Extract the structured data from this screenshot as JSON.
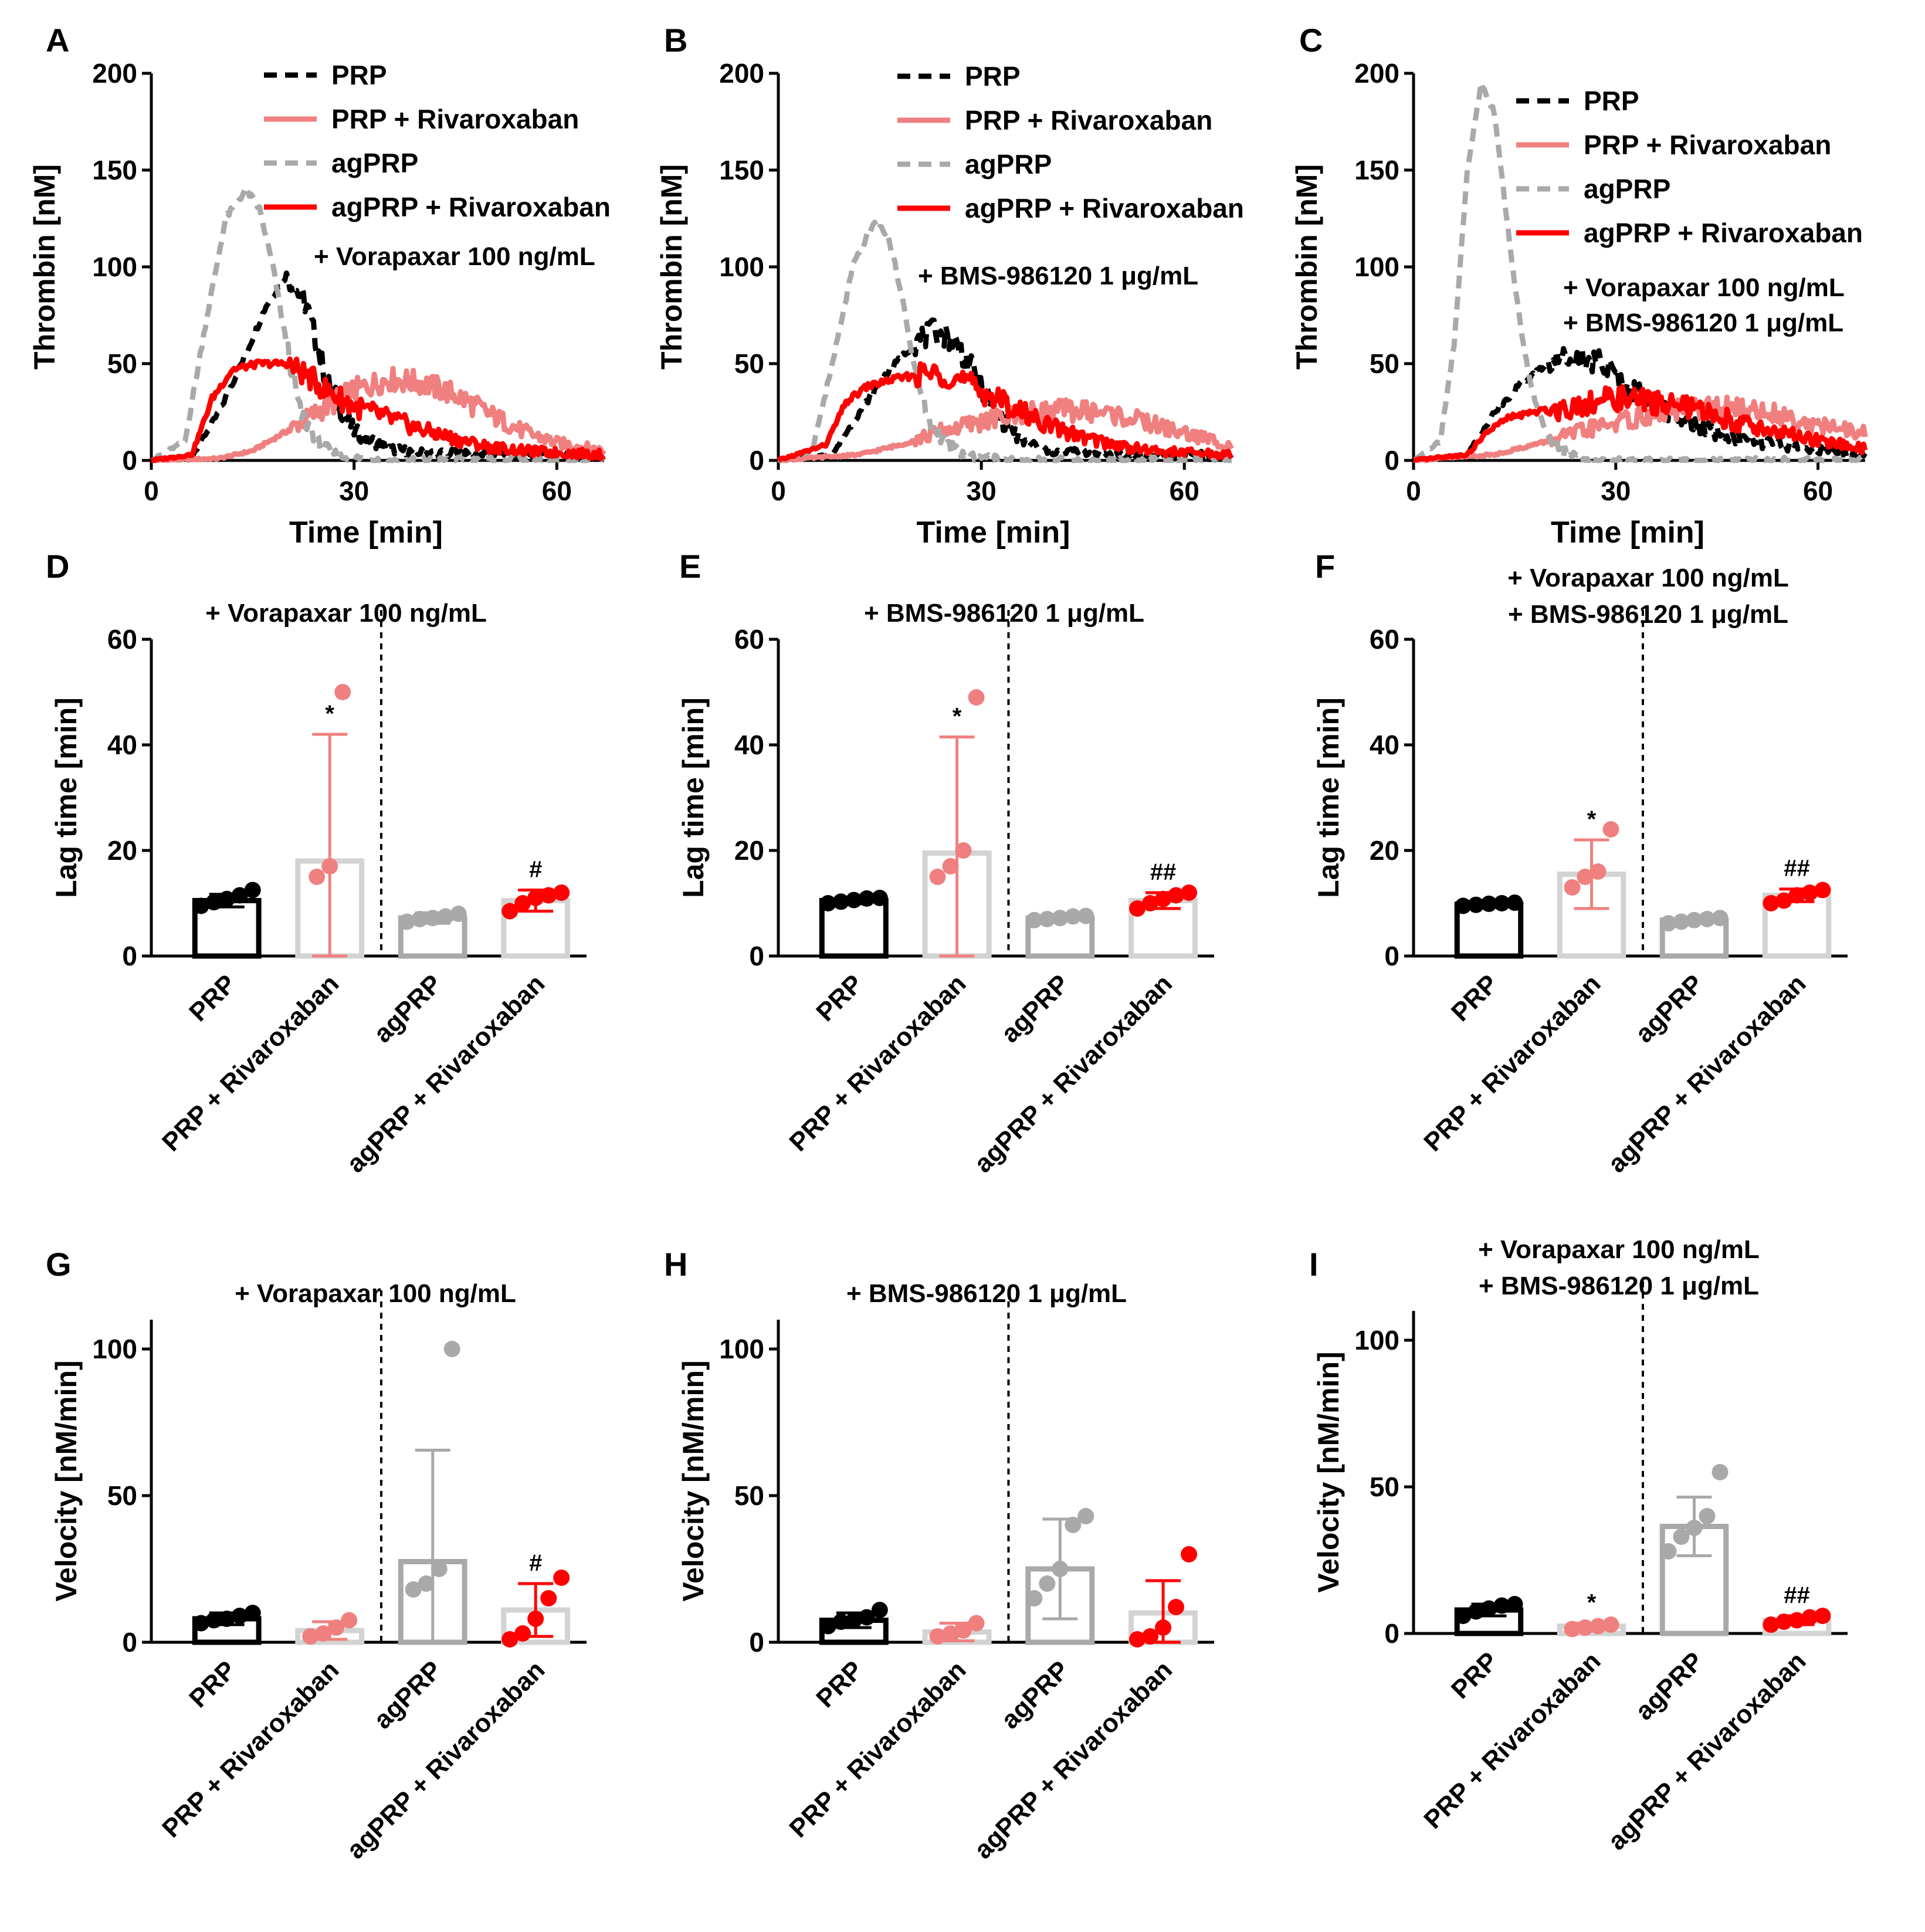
{
  "colors": {
    "PRP": "#000000",
    "PRP + Rivaroxaban": "#f08080",
    "agPRP": "#a9a9a9",
    "agPRP + Rivaroxaban": "#ff0000",
    "barPRP": "#000000",
    "barPRPRiv": "#d3d3d3",
    "barAg": "#a9a9a9",
    "barAgRiv": "#d3d3d3"
  },
  "chart_data": [
    {
      "panel": "A",
      "type": "line",
      "xlabel": "Time [min]",
      "ylabel": "Thrombin [nM]",
      "xlim": [
        0,
        67
      ],
      "ylim": [
        0,
        200
      ],
      "xticks": [
        "0",
        "30",
        "60"
      ],
      "yticks": [
        "0",
        "50",
        "100",
        "150",
        "200"
      ],
      "annotations": [
        "+ Vorapaxar 100 ng/mL"
      ],
      "legend": [
        "PRP",
        "PRP + Rivaroxaban",
        "agPRP",
        "agPRP + Rivaroxaban"
      ],
      "series": [
        {
          "name": "PRP",
          "style": "dashed",
          "x": [
            0,
            6,
            10,
            14,
            17,
            20,
            23,
            26,
            30,
            35,
            40,
            50,
            60,
            67
          ],
          "y": [
            0,
            2,
            25,
            55,
            80,
            96,
            80,
            40,
            15,
            6,
            4,
            3,
            3,
            2
          ]
        },
        {
          "name": "PRP + Rivaroxaban",
          "style": "solid",
          "x": [
            0,
            10,
            15,
            20,
            25,
            30,
            35,
            40,
            45,
            50,
            55,
            60,
            67
          ],
          "y": [
            0,
            1,
            5,
            15,
            26,
            36,
            42,
            40,
            34,
            24,
            15,
            9,
            5
          ]
        },
        {
          "name": "agPRP",
          "style": "dashed",
          "x": [
            0,
            5,
            8,
            11,
            14,
            16,
            18,
            20,
            22,
            25,
            28,
            35,
            67
          ],
          "y": [
            0,
            10,
            70,
            125,
            140,
            130,
            100,
            60,
            25,
            8,
            2,
            0,
            0
          ]
        },
        {
          "name": "agPRP + Rivaroxaban",
          "style": "solid",
          "x": [
            0,
            6,
            9,
            12,
            16,
            20,
            23,
            26,
            30,
            35,
            40,
            45,
            50,
            55,
            60,
            67
          ],
          "y": [
            0,
            3,
            32,
            47,
            50,
            50,
            44,
            36,
            28,
            22,
            16,
            11,
            7,
            5,
            4,
            3
          ]
        }
      ]
    },
    {
      "panel": "B",
      "type": "line",
      "xlabel": "Time [min]",
      "ylabel": "Thrombin [nM]",
      "xlim": [
        0,
        67
      ],
      "ylim": [
        0,
        200
      ],
      "xticks": [
        "0",
        "30",
        "60"
      ],
      "yticks": [
        "0",
        "50",
        "100",
        "150",
        "200"
      ],
      "annotations": [
        "+ BMS-986120 1 μg/mL"
      ],
      "legend": [
        "PRP",
        "PRP + Rivaroxaban",
        "agPRP",
        "agPRP + Rivaroxaban"
      ],
      "series": [
        {
          "name": "PRP",
          "style": "dashed",
          "x": [
            0,
            8,
            12,
            16,
            20,
            23,
            26,
            29,
            32,
            36,
            40,
            50,
            60,
            67
          ],
          "y": [
            0,
            3,
            25,
            45,
            60,
            67,
            62,
            45,
            25,
            10,
            5,
            3,
            3,
            2
          ]
        },
        {
          "name": "PRP + Rivaroxaban",
          "style": "solid",
          "x": [
            0,
            12,
            18,
            24,
            30,
            36,
            42,
            48,
            54,
            60,
            67
          ],
          "y": [
            0,
            3,
            8,
            15,
            20,
            24,
            26,
            25,
            20,
            14,
            8
          ]
        },
        {
          "name": "agPRP",
          "style": "dashed",
          "x": [
            0,
            5,
            8,
            11,
            14,
            16,
            18,
            20,
            22,
            25,
            28,
            35,
            67
          ],
          "y": [
            0,
            5,
            50,
            100,
            122,
            118,
            90,
            50,
            22,
            8,
            2,
            0,
            0
          ]
        },
        {
          "name": "agPRP + Rivaroxaban",
          "style": "solid",
          "x": [
            0,
            7,
            10,
            13,
            17,
            22,
            25,
            28,
            32,
            36,
            40,
            45,
            50,
            55,
            60,
            67
          ],
          "y": [
            0,
            8,
            30,
            38,
            42,
            45,
            44,
            40,
            32,
            25,
            18,
            12,
            8,
            5,
            4,
            3
          ]
        }
      ]
    },
    {
      "panel": "C",
      "type": "line",
      "xlabel": "Time [min]",
      "ylabel": "Thrombin [nM]",
      "xlim": [
        0,
        67
      ],
      "ylim": [
        0,
        200
      ],
      "xticks": [
        "0",
        "30",
        "60"
      ],
      "yticks": [
        "0",
        "50",
        "100",
        "150",
        "200"
      ],
      "annotations": [
        "+ Vorapaxar 100 ng/mL",
        "+ BMS-986120 1 μg/mL"
      ],
      "legend": [
        "PRP",
        "PRP + Rivaroxaban",
        "agPRP",
        "agPRP + Rivaroxaban"
      ],
      "series": [
        {
          "name": "PRP",
          "style": "dashed",
          "x": [
            0,
            8,
            12,
            16,
            20,
            24,
            28,
            32,
            36,
            40,
            45,
            50,
            55,
            60,
            67
          ],
          "y": [
            0,
            3,
            25,
            40,
            50,
            55,
            50,
            38,
            28,
            20,
            14,
            10,
            8,
            5,
            3
          ]
        },
        {
          "name": "PRP + Rivaroxaban",
          "style": "solid",
          "x": [
            0,
            12,
            20,
            28,
            36,
            42,
            48,
            54,
            60,
            67
          ],
          "y": [
            0,
            3,
            10,
            18,
            24,
            27,
            27,
            24,
            18,
            14
          ]
        },
        {
          "name": "agPRP",
          "style": "dashed",
          "x": [
            0,
            4,
            6,
            8,
            10,
            12,
            14,
            16,
            18,
            20,
            22,
            25,
            28,
            67
          ],
          "y": [
            0,
            10,
            60,
            150,
            195,
            180,
            120,
            65,
            30,
            12,
            5,
            1,
            0,
            0
          ]
        },
        {
          "name": "agPRP + Rivaroxaban",
          "style": "solid",
          "x": [
            0,
            8,
            11,
            14,
            18,
            22,
            26,
            30,
            34,
            38,
            42,
            46,
            50,
            55,
            60,
            67
          ],
          "y": [
            0,
            3,
            15,
            22,
            25,
            27,
            30,
            32,
            31,
            29,
            26,
            22,
            18,
            14,
            10,
            6
          ]
        }
      ]
    },
    {
      "panel": "D",
      "type": "bar",
      "ylabel": "Lag time [min]",
      "ylim": [
        0,
        60
      ],
      "yticks": [
        "0",
        "20",
        "40",
        "60"
      ],
      "title": [
        "+ Vorapaxar 100 ng/mL"
      ],
      "categories": [
        "PRP",
        "PRP + Rivaroxaban",
        "agPRP",
        "agPRP + Rivaroxaban"
      ],
      "values": [
        10.5,
        18,
        7.2,
        10.5
      ],
      "err": [
        1.2,
        24,
        1.0,
        2.0
      ],
      "points": [
        [
          9.5,
          10.2,
          10.8,
          11.5,
          12.5
        ],
        [
          15,
          17,
          50
        ],
        [
          6.5,
          7,
          7.2,
          7.5,
          8
        ],
        [
          8.5,
          10,
          11,
          11.5,
          12
        ]
      ],
      "sig": [
        "",
        "*",
        "",
        "#"
      ]
    },
    {
      "panel": "E",
      "type": "bar",
      "ylabel": "Lag time [min]",
      "ylim": [
        0,
        60
      ],
      "yticks": [
        "0",
        "20",
        "40",
        "60"
      ],
      "title": [
        "+ BMS-986120 1 μg/mL"
      ],
      "categories": [
        "PRP",
        "PRP + Rivaroxaban",
        "agPRP",
        "agPRP + Rivaroxaban"
      ],
      "values": [
        10.5,
        19.5,
        7.2,
        10.5
      ],
      "err": [
        0.6,
        22,
        0.5,
        1.5
      ],
      "points": [
        [
          10,
          10.3,
          10.6,
          10.9,
          11
        ],
        [
          15,
          17,
          20,
          49
        ],
        [
          6.8,
          7,
          7.2,
          7.5,
          7.6
        ],
        [
          9,
          10,
          10.8,
          11.5,
          12
        ]
      ],
      "sig": [
        "",
        "*",
        "",
        "##"
      ]
    },
    {
      "panel": "F",
      "type": "bar",
      "ylabel": "Lag time [min]",
      "ylim": [
        0,
        60
      ],
      "yticks": [
        "0",
        "20",
        "40",
        "60"
      ],
      "title": [
        "+ Vorapaxar 100 ng/mL",
        "+ BMS-986120 1 μg/mL"
      ],
      "categories": [
        "PRP",
        "PRP + Rivaroxaban",
        "agPRP",
        "agPRP + Rivaroxaban"
      ],
      "values": [
        9.8,
        15.5,
        6.8,
        11.5
      ],
      "err": [
        0.4,
        6.5,
        0.5,
        1.2
      ],
      "points": [
        [
          9.5,
          9.7,
          9.9,
          10,
          10.1
        ],
        [
          13,
          15,
          16,
          24
        ],
        [
          6.2,
          6.5,
          6.8,
          7,
          7.2
        ],
        [
          10,
          10.5,
          11.5,
          12,
          12.5
        ]
      ],
      "sig": [
        "",
        "*",
        "",
        "##"
      ]
    },
    {
      "panel": "G",
      "type": "bar",
      "ylabel": "Velocity [nM/min]",
      "ylim": [
        0,
        110
      ],
      "yticks": [
        "0",
        "50",
        "100"
      ],
      "title": [
        "+ Vorapaxar 100 ng/mL"
      ],
      "categories": [
        "PRP",
        "PRP + Rivaroxaban",
        "agPRP",
        "agPRP + Rivaroxaban"
      ],
      "values": [
        8,
        4,
        27.5,
        11
      ],
      "err": [
        2,
        3,
        38,
        9
      ],
      "points": [
        [
          6.5,
          7.5,
          8,
          9,
          10
        ],
        [
          2,
          3,
          5,
          7.5
        ],
        [
          18,
          20,
          25,
          100
        ],
        [
          1,
          3,
          8,
          15,
          22
        ]
      ],
      "sig": [
        "",
        "",
        "",
        "#"
      ]
    },
    {
      "panel": "H",
      "type": "bar",
      "ylabel": "Velocity [nM/min]",
      "ylim": [
        0,
        110
      ],
      "yticks": [
        "0",
        "50",
        "100"
      ],
      "title": [
        "+ BMS-986120 1 μg/mL"
      ],
      "categories": [
        "PRP",
        "PRP + Rivaroxaban",
        "agPRP",
        "agPRP + Rivaroxaban"
      ],
      "values": [
        7.5,
        3.5,
        25,
        10
      ],
      "err": [
        2.5,
        3,
        17,
        11
      ],
      "points": [
        [
          5.5,
          7,
          7.5,
          8.5,
          11
        ],
        [
          2,
          3,
          4,
          6.5
        ],
        [
          15,
          20,
          25,
          40,
          43
        ],
        [
          1,
          2,
          5,
          12,
          30
        ]
      ],
      "sig": [
        "",
        "",
        "",
        ""
      ]
    },
    {
      "panel": "I",
      "type": "bar",
      "ylabel": "Velocity [nM/min]",
      "ylim": [
        0,
        110
      ],
      "yticks": [
        "0",
        "50",
        "100"
      ],
      "title": [
        "+ Vorapaxar 100 ng/mL",
        "+ BMS-986120 1 μg/mL"
      ],
      "categories": [
        "PRP",
        "PRP + Rivaroxaban",
        "agPRP",
        "agPRP + Rivaroxaban"
      ],
      "values": [
        8,
        2.5,
        36.5,
        4.5
      ],
      "err": [
        2,
        1,
        10,
        1.5
      ],
      "points": [
        [
          6,
          7.5,
          8.5,
          9.5,
          10
        ],
        [
          1.5,
          2,
          2.5,
          3
        ],
        [
          28,
          33,
          36,
          40,
          55
        ],
        [
          3,
          4,
          4.5,
          5.5,
          6
        ]
      ],
      "sig": [
        "",
        "*",
        "",
        "##"
      ]
    }
  ]
}
